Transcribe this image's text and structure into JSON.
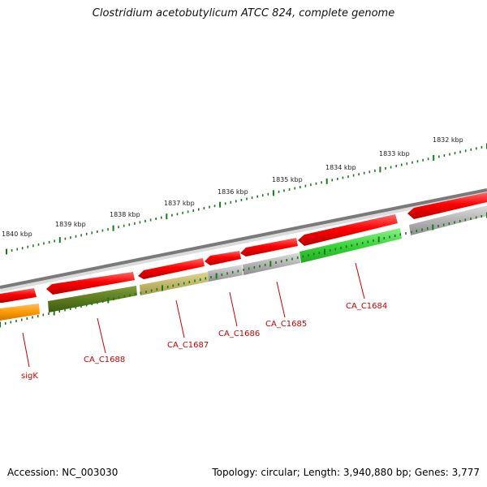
{
  "title": "Clostridium acetobutylicum ATCC 824, complete genome",
  "footer": {
    "accession": "Accession: NC_003030",
    "stats": "Topology: circular; Length: 3,940,880 bp; Genes: 3,777"
  },
  "ticks": [
    "1840 kbp",
    "1839 kbp",
    "1838 kbp",
    "1837 kbp",
    "1836 kbp",
    "1835 kbp",
    "1834 kbp",
    "1833 kbp",
    "1832 kbp"
  ],
  "genes": [
    "sigK",
    "CA_C1688",
    "CA_C1687",
    "CA_C1686",
    "CA_C1685",
    "CA_C1684"
  ],
  "colors": {
    "backbone": "#7a7a7a",
    "cds": "#ff0000",
    "dark_olive": "#5b7b1e",
    "khaki": "#c2b86a",
    "orange": "#ff9900",
    "green": "#3bd43b",
    "grey": "#b0b0b0",
    "tick": "#1a7a1a",
    "label": "#cc0000"
  }
}
